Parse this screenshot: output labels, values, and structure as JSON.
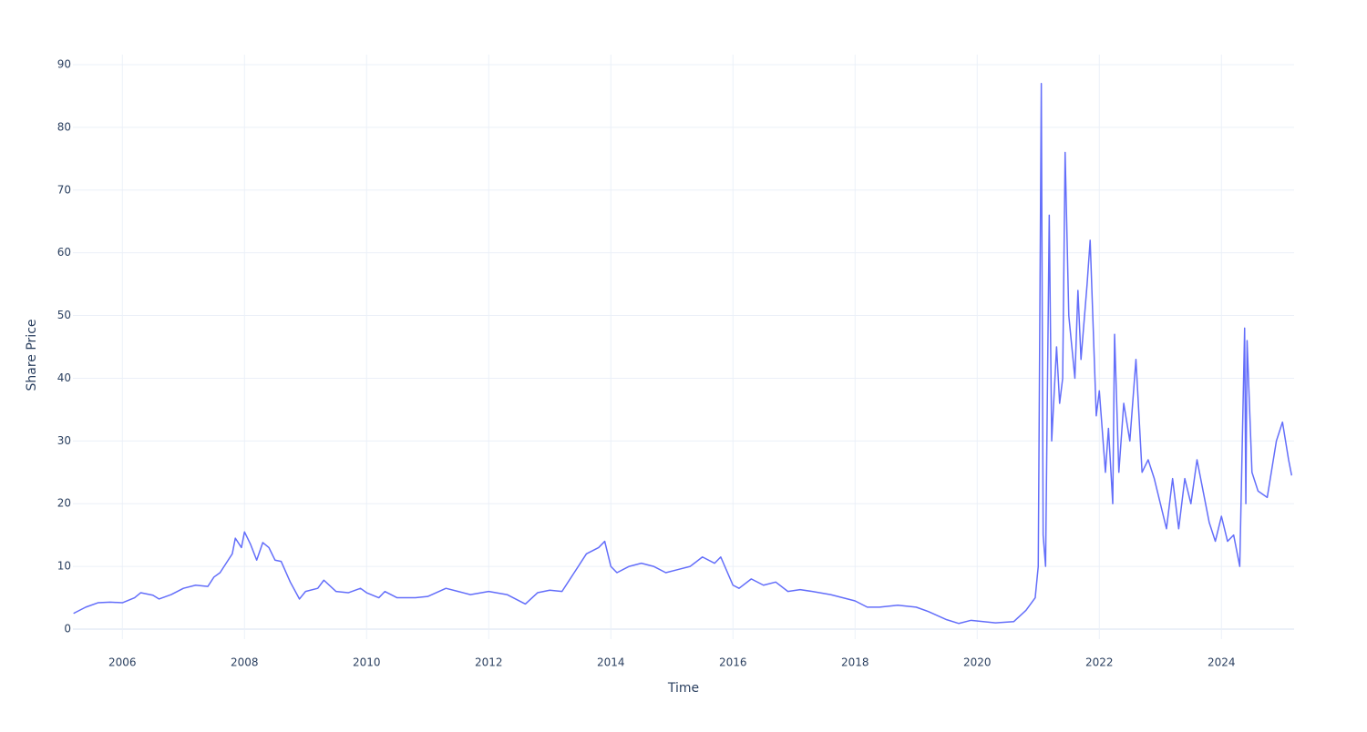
{
  "chart_data": {
    "type": "line",
    "x_label": "Time",
    "y_label": "Share Price",
    "xlim": [
      2005.19,
      2025.19
    ],
    "xticks": [
      2006,
      2008,
      2010,
      2012,
      2014,
      2016,
      2018,
      2020,
      2022,
      2024
    ],
    "ylim": [
      -1.6,
      91.6
    ],
    "yticks": [
      0,
      10,
      20,
      30,
      40,
      50,
      60,
      70,
      80,
      90
    ],
    "grid": true,
    "series": [
      {
        "color": "#636efa",
        "x": [
          2005.2,
          2005.4,
          2005.6,
          2005.8,
          2006.0,
          2006.2,
          2006.3,
          2006.5,
          2006.6,
          2006.8,
          2007.0,
          2007.2,
          2007.4,
          2007.5,
          2007.6,
          2007.7,
          2007.8,
          2007.85,
          2007.95,
          2008.0,
          2008.1,
          2008.2,
          2008.3,
          2008.4,
          2008.5,
          2008.6,
          2008.75,
          2008.9,
          2009.0,
          2009.2,
          2009.3,
          2009.5,
          2009.7,
          2009.9,
          2010.0,
          2010.2,
          2010.3,
          2010.5,
          2010.8,
          2011.0,
          2011.3,
          2011.5,
          2011.7,
          2012.0,
          2012.3,
          2012.6,
          2012.8,
          2013.0,
          2013.2,
          2013.4,
          2013.6,
          2013.8,
          2013.9,
          2014.0,
          2014.1,
          2014.3,
          2014.5,
          2014.7,
          2014.9,
          2015.1,
          2015.3,
          2015.5,
          2015.7,
          2015.8,
          2016.0,
          2016.1,
          2016.3,
          2016.5,
          2016.7,
          2016.9,
          2017.1,
          2017.3,
          2017.6,
          2018.0,
          2018.2,
          2018.4,
          2018.7,
          2019.0,
          2019.2,
          2019.5,
          2019.7,
          2019.9,
          2020.1,
          2020.3,
          2020.6,
          2020.8,
          2020.95,
          2021.0,
          2021.05,
          2021.08,
          2021.12,
          2021.18,
          2021.22,
          2021.3,
          2021.35,
          2021.4,
          2021.44,
          2021.5,
          2021.55,
          2021.6,
          2021.65,
          2021.7,
          2021.8,
          2021.85,
          2021.9,
          2021.95,
          2022.0,
          2022.1,
          2022.15,
          2022.22,
          2022.25,
          2022.32,
          2022.4,
          2022.5,
          2022.6,
          2022.7,
          2022.8,
          2022.9,
          2023.0,
          2023.1,
          2023.2,
          2023.3,
          2023.4,
          2023.5,
          2023.6,
          2023.7,
          2023.8,
          2023.9,
          2024.0,
          2024.1,
          2024.2,
          2024.3,
          2024.38,
          2024.4,
          2024.42,
          2024.5,
          2024.6,
          2024.75,
          2024.9,
          2025.0,
          2025.1,
          2025.15
        ],
        "values": [
          2.5,
          3.5,
          4.2,
          4.3,
          4.2,
          5.0,
          5.8,
          5.4,
          4.8,
          5.5,
          6.5,
          7.0,
          6.8,
          8.3,
          9.0,
          10.5,
          12.0,
          14.5,
          13.0,
          15.5,
          13.5,
          11.0,
          13.8,
          13.0,
          11.0,
          10.8,
          7.5,
          4.8,
          6.0,
          6.5,
          7.8,
          6.0,
          5.8,
          6.5,
          5.8,
          5.0,
          6.0,
          5.0,
          5.0,
          5.2,
          6.5,
          6.0,
          5.5,
          6.0,
          5.5,
          4.0,
          5.8,
          6.2,
          6.0,
          9.0,
          12.0,
          13.0,
          14.0,
          10.0,
          9.0,
          10.0,
          10.5,
          10.0,
          9.0,
          9.5,
          10.0,
          11.5,
          10.5,
          11.5,
          7.0,
          6.5,
          8.0,
          7.0,
          7.5,
          6.0,
          6.3,
          6.0,
          5.5,
          4.5,
          3.5,
          3.5,
          3.8,
          3.5,
          2.8,
          1.5,
          0.9,
          1.4,
          1.2,
          1.0,
          1.2,
          3.0,
          5.0,
          10.0,
          87,
          15,
          10,
          66,
          30,
          45,
          36,
          40,
          76,
          50,
          45,
          40,
          54,
          43,
          55,
          62,
          48,
          34,
          38,
          25,
          32,
          20,
          47,
          25,
          36,
          30,
          43,
          25,
          27,
          24,
          20,
          16,
          24,
          16,
          24,
          20,
          27,
          22,
          17,
          14,
          18,
          14,
          15,
          10,
          48,
          20,
          46,
          25,
          22,
          21,
          30,
          33,
          27,
          24.5
        ]
      }
    ]
  }
}
